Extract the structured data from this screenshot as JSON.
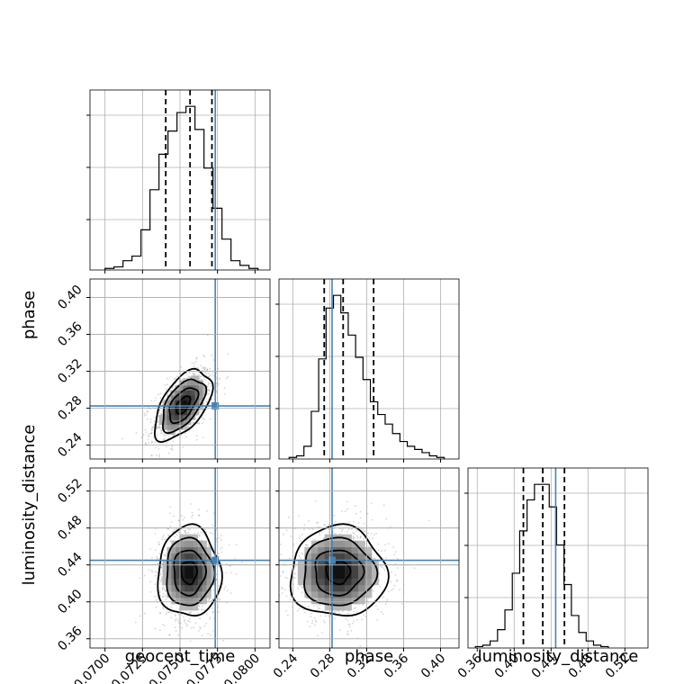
{
  "chart_data": {
    "type": "corner",
    "parameters": [
      "geocent_time",
      "phase",
      "luminosity_distance"
    ],
    "truth": {
      "geocent_time": 0.07735,
      "phase": 0.2825,
      "luminosity_distance": 0.445
    },
    "colors": {
      "truth": "#4682b4",
      "hist": "#000000",
      "quantile": "#000000",
      "grid": "#b0b0b0",
      "scatter": "#888888"
    },
    "grid": true,
    "axes": {
      "geocent_time": {
        "xlim": [
          0.069,
          0.081
        ],
        "ticks": [
          0.07,
          0.0725,
          0.075,
          0.0775,
          0.08
        ],
        "tick_labels": [
          "0.0700",
          "0.0725",
          "0.0750",
          "0.0775",
          "0.0800"
        ]
      },
      "phase": {
        "xlim": [
          0.225,
          0.42
        ],
        "ticks": [
          0.24,
          0.28,
          0.32,
          0.36,
          0.4
        ],
        "tick_labels": [
          "0.24",
          "0.28",
          "0.32",
          "0.36",
          "0.40"
        ]
      },
      "luminosity_distance": {
        "xlim": [
          0.35,
          0.545
        ],
        "ticks": [
          0.36,
          0.4,
          0.44,
          0.48,
          0.52
        ],
        "tick_labels": [
          "0.36",
          "0.40",
          "0.44",
          "0.48",
          "0.52"
        ]
      }
    },
    "marginals": {
      "geocent_time": {
        "bin_edges": [
          0.07,
          0.0706,
          0.0712,
          0.0718,
          0.0724,
          0.073,
          0.0736,
          0.0742,
          0.0748,
          0.0754,
          0.076,
          0.0766,
          0.0772,
          0.0778,
          0.0784,
          0.079,
          0.0796,
          0.0802
        ],
        "counts": [
          1,
          2,
          6,
          9,
          26,
          52,
          75,
          90,
          102,
          106,
          91,
          66,
          40,
          20,
          6,
          3,
          1
        ],
        "quantiles": [
          0.07405,
          0.07567,
          0.07713
        ]
      },
      "phase": {
        "bin_edges": [
          0.236,
          0.244,
          0.252,
          0.26,
          0.268,
          0.276,
          0.284,
          0.292,
          0.3,
          0.308,
          0.316,
          0.324,
          0.332,
          0.34,
          0.348,
          0.356,
          0.364,
          0.372,
          0.38,
          0.388,
          0.396,
          0.404
        ],
        "counts": [
          1,
          2,
          8,
          30,
          63,
          95,
          103,
          92,
          78,
          64,
          50,
          36,
          28,
          22,
          16,
          11,
          8,
          6,
          4,
          2,
          1
        ],
        "quantiles": [
          0.274,
          0.2945,
          0.3275
        ]
      },
      "luminosity_distance": {
        "bin_edges": [
          0.358,
          0.366,
          0.374,
          0.382,
          0.39,
          0.398,
          0.406,
          0.414,
          0.422,
          0.43,
          0.438,
          0.446,
          0.454,
          0.462,
          0.47,
          0.478,
          0.486,
          0.494,
          0.502
        ],
        "counts": [
          1,
          2,
          5,
          13,
          27,
          53,
          83,
          105,
          116,
          116,
          100,
          73,
          45,
          23,
          11,
          5,
          2,
          1
        ],
        "quantiles": [
          0.41,
          0.431,
          0.4545
        ]
      }
    },
    "pairs": [
      {
        "x": "geocent_time",
        "y": "phase",
        "center": [
          0.0752,
          0.2835
        ],
        "sigma": [
          0.00095,
          0.019
        ],
        "rho": 0.55,
        "contour_levels": [
          "0.5",
          "1.0",
          "1.5",
          "2.0"
        ]
      },
      {
        "x": "geocent_time",
        "y": "luminosity_distance",
        "center": [
          0.0756,
          0.432
        ],
        "sigma": [
          0.00105,
          0.0245
        ],
        "rho": 0.0,
        "contour_levels": [
          "0.5",
          "1.0",
          "1.5",
          "2.0"
        ]
      },
      {
        "x": "phase",
        "y": "luminosity_distance",
        "center": [
          0.289,
          0.432
        ],
        "sigma": [
          0.026,
          0.0245
        ],
        "rho": 0.0,
        "contour_levels": [
          "0.5",
          "1.0",
          "1.5",
          "2.0"
        ]
      }
    ]
  }
}
